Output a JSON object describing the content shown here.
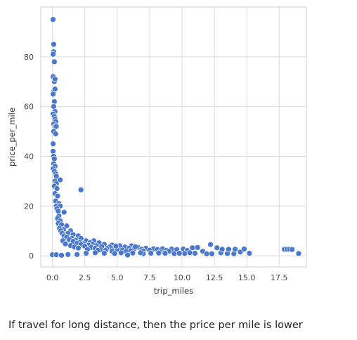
{
  "chart_data": {
    "type": "scatter",
    "title": "",
    "xlabel": "trip_miles",
    "ylabel": "price_per_mile",
    "xlim": [
      -0.9,
      19.6
    ],
    "ylim": [
      -4.5,
      100
    ],
    "xticks": [
      0.0,
      2.5,
      5.0,
      7.5,
      10.0,
      12.5,
      15.0,
      17.5
    ],
    "xtick_labels": [
      "0.0",
      "2.5",
      "5.0",
      "7.5",
      "10.0",
      "12.5",
      "15.0",
      "17.5"
    ],
    "yticks": [
      0,
      20,
      40,
      60,
      80
    ],
    "ytick_labels": [
      "0",
      "20",
      "40",
      "60",
      "80"
    ],
    "grid": true,
    "marker_color": "#4a78cc",
    "points": [
      [
        0.05,
        95
      ],
      [
        0.1,
        85
      ],
      [
        0.1,
        82
      ],
      [
        0.05,
        81
      ],
      [
        0.15,
        78
      ],
      [
        0.05,
        72
      ],
      [
        0.15,
        70
      ],
      [
        0.2,
        71
      ],
      [
        0.1,
        66
      ],
      [
        0.05,
        65
      ],
      [
        0.2,
        67
      ],
      [
        0.15,
        62
      ],
      [
        0.1,
        60
      ],
      [
        0.2,
        58
      ],
      [
        0.05,
        57
      ],
      [
        0.15,
        56
      ],
      [
        0.2,
        55
      ],
      [
        0.25,
        54
      ],
      [
        0.1,
        53
      ],
      [
        0.2,
        52
      ],
      [
        0.3,
        52
      ],
      [
        0.1,
        50
      ],
      [
        0.25,
        49
      ],
      [
        0.05,
        45
      ],
      [
        0.05,
        42
      ],
      [
        0.1,
        40
      ],
      [
        0.15,
        39
      ],
      [
        0.1,
        37
      ],
      [
        0.2,
        36
      ],
      [
        0.05,
        35
      ],
      [
        0.15,
        34
      ],
      [
        0.25,
        33
      ],
      [
        0.3,
        32
      ],
      [
        0.6,
        30.5
      ],
      [
        0.2,
        30
      ],
      [
        0.3,
        29
      ],
      [
        0.15,
        28
      ],
      [
        0.35,
        27
      ],
      [
        0.2,
        25
      ],
      [
        0.4,
        24
      ],
      [
        0.25,
        22
      ],
      [
        0.5,
        21
      ],
      [
        0.3,
        20
      ],
      [
        0.6,
        20
      ],
      [
        0.35,
        19
      ],
      [
        0.45,
        18
      ],
      [
        0.9,
        17.5
      ],
      [
        0.5,
        16
      ],
      [
        0.4,
        15
      ],
      [
        0.6,
        14
      ],
      [
        0.45,
        13
      ],
      [
        0.7,
        12.5
      ],
      [
        1.1,
        12
      ],
      [
        0.55,
        11
      ],
      [
        0.85,
        10.5
      ],
      [
        0.65,
        10
      ],
      [
        1.4,
        10
      ],
      [
        0.75,
        9
      ],
      [
        1.2,
        9
      ],
      [
        1.6,
        8.5
      ],
      [
        0.9,
        8
      ],
      [
        2.0,
        8
      ],
      [
        1.1,
        7.5
      ],
      [
        1.5,
        7
      ],
      [
        2.2,
        7
      ],
      [
        1.3,
        6.5
      ],
      [
        1.8,
        6.2
      ],
      [
        2.6,
        6
      ],
      [
        3.2,
        6
      ],
      [
        1.6,
        5.8
      ],
      [
        2.1,
        5.5
      ],
      [
        2.9,
        5.3
      ],
      [
        3.6,
        5.2
      ],
      [
        1.9,
        5
      ],
      [
        2.4,
        4.8
      ],
      [
        3.1,
        4.6
      ],
      [
        4.0,
        4.6
      ],
      [
        4.6,
        4.3
      ],
      [
        2.2,
        4.5
      ],
      [
        2.8,
        4.2
      ],
      [
        3.4,
        4
      ],
      [
        5.2,
        4
      ],
      [
        6.1,
        4
      ],
      [
        2.5,
        3.8
      ],
      [
        3.8,
        3.7
      ],
      [
        4.4,
        3.5
      ],
      [
        5.6,
        3.5
      ],
      [
        6.6,
        3.4
      ],
      [
        3.0,
        3.3
      ],
      [
        4.8,
        3.2
      ],
      [
        5.9,
        3
      ],
      [
        7.2,
        3
      ],
      [
        3.3,
        3
      ],
      [
        4.2,
        2.9
      ],
      [
        6.3,
        2.8
      ],
      [
        7.8,
        2.8
      ],
      [
        8.5,
        2.8
      ],
      [
        9.2,
        2.7
      ],
      [
        10.1,
        2.7
      ],
      [
        10.8,
        3.2
      ],
      [
        11.2,
        3.3
      ],
      [
        5.0,
        2.6
      ],
      [
        6.9,
        2.6
      ],
      [
        8.1,
        2.5
      ],
      [
        9.6,
        2.5
      ],
      [
        3.7,
        2.4
      ],
      [
        5.4,
        2.3
      ],
      [
        7.5,
        2.2
      ],
      [
        8.8,
        2.2
      ],
      [
        10.4,
        2.1
      ],
      [
        4.1,
        2.1
      ],
      [
        6.0,
        2
      ],
      [
        7.0,
        1.9
      ],
      [
        9.0,
        1.8
      ],
      [
        11.6,
        1.8
      ],
      [
        4.6,
        1.8
      ],
      [
        5.7,
        1.7
      ],
      [
        8.3,
        1.6
      ],
      [
        2.7,
        2.5
      ],
      [
        3.5,
        2.2
      ],
      [
        1.4,
        4.1
      ],
      [
        1.7,
        3.5
      ],
      [
        2.0,
        3.1
      ],
      [
        6.4,
        3.6
      ],
      [
        4.9,
        3.9
      ],
      [
        0.8,
        6.0
      ],
      [
        1.0,
        4.8
      ],
      [
        5.8,
        0.3
      ],
      [
        7.0,
        0.8
      ],
      [
        8.7,
        1.0
      ],
      [
        9.4,
        0.9
      ],
      [
        10.2,
        0.9
      ],
      [
        11.0,
        1.0
      ],
      [
        11.9,
        0.8
      ],
      [
        12.3,
        0.8
      ],
      [
        13.0,
        1.2
      ],
      [
        13.5,
        0.9
      ],
      [
        14.0,
        0.8
      ],
      [
        14.5,
        1.5
      ],
      [
        15.2,
        1
      ],
      [
        12.2,
        4.5
      ],
      [
        12.7,
        3.2
      ],
      [
        13.1,
        2.6
      ],
      [
        13.6,
        2.6
      ],
      [
        14.1,
        2.6
      ],
      [
        14.8,
        2.7
      ],
      [
        17.9,
        2.6
      ],
      [
        18.1,
        2.6
      ],
      [
        18.3,
        2.6
      ],
      [
        18.5,
        2.5
      ],
      [
        19.0,
        0.9
      ],
      [
        2.2,
        26.5
      ],
      [
        0.0,
        0.4
      ],
      [
        0.3,
        0.4
      ],
      [
        0.7,
        0.2
      ],
      [
        1.2,
        0.5
      ],
      [
        1.9,
        0.5
      ],
      [
        2.6,
        1
      ],
      [
        3.3,
        1.2
      ],
      [
        4.0,
        1
      ],
      [
        4.8,
        0.9
      ],
      [
        5.3,
        1.2
      ],
      [
        6.2,
        1.1
      ],
      [
        6.8,
        1.2
      ],
      [
        7.6,
        1
      ],
      [
        8.2,
        1.1
      ],
      [
        9.8,
        1
      ],
      [
        10.6,
        1.2
      ]
    ]
  },
  "caption": "If travel for long distance, then the price per mile is lower"
}
